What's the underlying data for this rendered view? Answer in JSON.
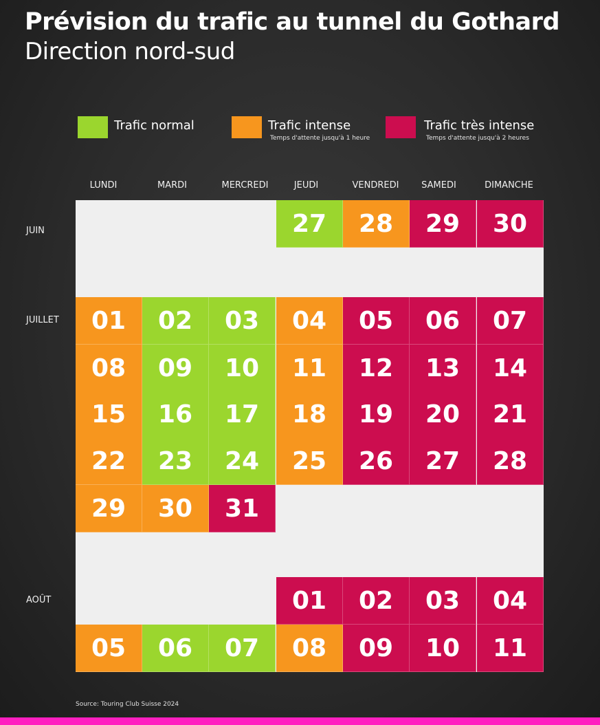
{
  "title": "Prévision du trafic au tunnel du Gothard",
  "subtitle": "Direction nord-sud",
  "colors": {
    "normal": "#9bd62e",
    "intense": "#f7961e",
    "very_intense": "#cc0d4f",
    "empty": "#efefef",
    "accent_bar": "#ff1fc0"
  },
  "legend": [
    {
      "key": "normal",
      "label": "Trafic normal",
      "note": ""
    },
    {
      "key": "intense",
      "label": "Trafic intense",
      "note": "Temps d'attente jusqu'à 1 heure"
    },
    {
      "key": "very_intense",
      "label": "Trafic très intense",
      "note": "Temps d'attente jusqu'à 2 heures"
    }
  ],
  "days": [
    "LUNDI",
    "MARDI",
    "MERCREDI",
    "JEUDI",
    "VENDREDI",
    "SAMEDI",
    "DIMANCHE"
  ],
  "months": [
    "JUIN",
    "JUILLET",
    "AOÛT"
  ],
  "calendar": [
    {
      "month": "JUIN",
      "days": [
        [
          "27",
          "normal"
        ],
        [
          "28",
          "intense"
        ],
        [
          "29",
          "very_intense"
        ],
        [
          "30",
          "very_intense"
        ]
      ]
    },
    {
      "month": "JUILLET",
      "days": [
        [
          "01",
          "intense"
        ],
        [
          "02",
          "normal"
        ],
        [
          "03",
          "normal"
        ],
        [
          "04",
          "intense"
        ],
        [
          "05",
          "very_intense"
        ],
        [
          "06",
          "very_intense"
        ],
        [
          "07",
          "very_intense"
        ],
        [
          "08",
          "intense"
        ],
        [
          "09",
          "normal"
        ],
        [
          "10",
          "normal"
        ],
        [
          "11",
          "intense"
        ],
        [
          "12",
          "very_intense"
        ],
        [
          "13",
          "very_intense"
        ],
        [
          "14",
          "very_intense"
        ],
        [
          "15",
          "intense"
        ],
        [
          "16",
          "normal"
        ],
        [
          "17",
          "normal"
        ],
        [
          "18",
          "intense"
        ],
        [
          "19",
          "very_intense"
        ],
        [
          "20",
          "very_intense"
        ],
        [
          "21",
          "very_intense"
        ],
        [
          "22",
          "intense"
        ],
        [
          "23",
          "normal"
        ],
        [
          "24",
          "normal"
        ],
        [
          "25",
          "intense"
        ],
        [
          "26",
          "very_intense"
        ],
        [
          "27",
          "very_intense"
        ],
        [
          "28",
          "very_intense"
        ],
        [
          "29",
          "intense"
        ],
        [
          "30",
          "intense"
        ],
        [
          "31",
          "very_intense"
        ]
      ]
    },
    {
      "month": "AOÛT",
      "days": [
        [
          "01",
          "very_intense"
        ],
        [
          "02",
          "very_intense"
        ],
        [
          "03",
          "very_intense"
        ],
        [
          "04",
          "very_intense"
        ],
        [
          "05",
          "intense"
        ],
        [
          "06",
          "normal"
        ],
        [
          "07",
          "normal"
        ],
        [
          "08",
          "intense"
        ],
        [
          "09",
          "very_intense"
        ],
        [
          "10",
          "very_intense"
        ],
        [
          "11",
          "very_intense"
        ]
      ]
    }
  ],
  "source": "Source: Touring Club Suisse 2024"
}
